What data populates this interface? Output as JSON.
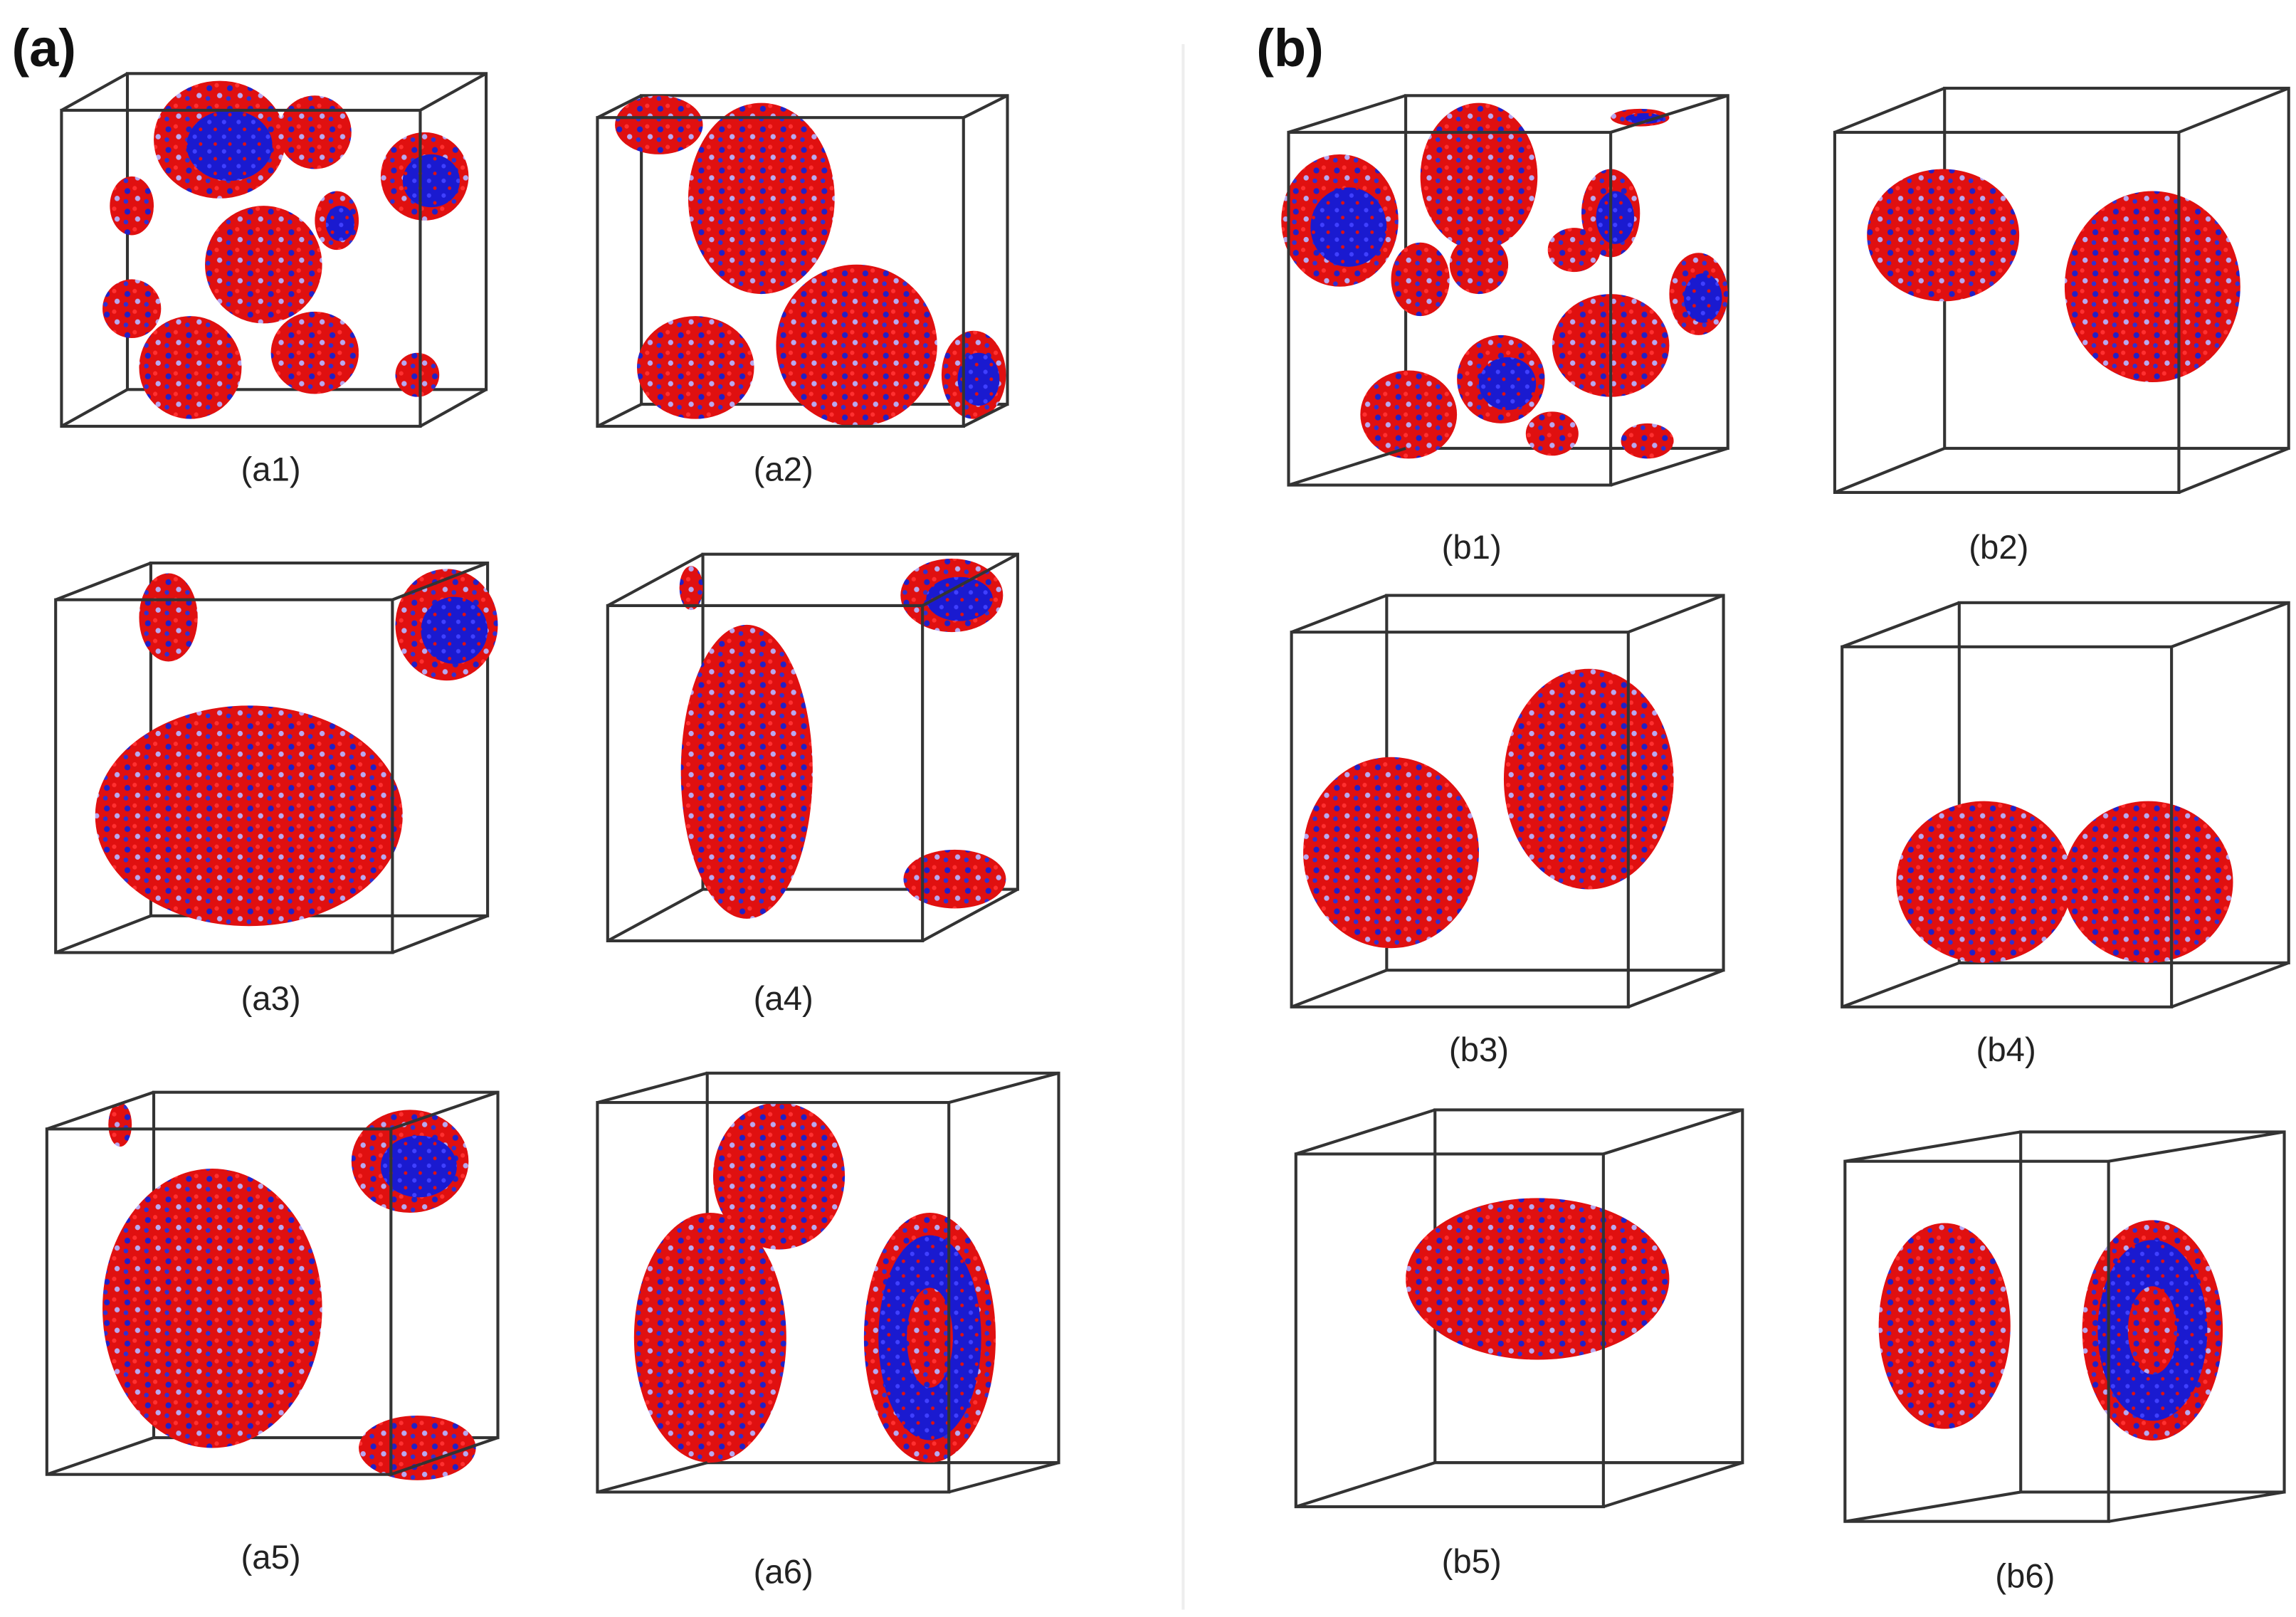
{
  "panels": [
    {
      "label": "(a)",
      "items": [
        {
          "label": "(a1)"
        },
        {
          "label": "(a2)"
        },
        {
          "label": "(a3)"
        },
        {
          "label": "(a4)"
        },
        {
          "label": "(a5)"
        },
        {
          "label": "(a6)"
        }
      ]
    },
    {
      "label": "(b)",
      "items": [
        {
          "label": "(b1)"
        },
        {
          "label": "(b2)"
        },
        {
          "label": "(b3)"
        },
        {
          "label": "(b4)"
        },
        {
          "label": "(b5)"
        },
        {
          "label": "(b6)"
        }
      ]
    }
  ]
}
